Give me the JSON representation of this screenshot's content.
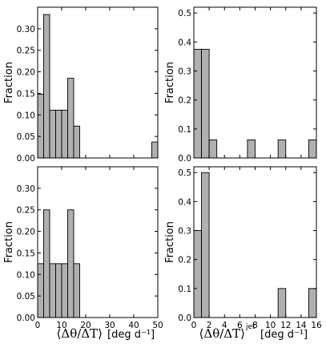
{
  "figure": {
    "bar_color": "#b0b0b0",
    "edge_color": "#000000",
    "ylabel": "Fraction",
    "xlabel_left": "⟨Δθ/ΔT⟩",
    "xlabel_right": "⟨Δθ/ΔT⟩",
    "xlabel_right_sup": "jet",
    "xunit": "[deg d⁻¹]"
  },
  "chart_data": [
    {
      "type": "bar",
      "panel": "top-left",
      "bin_width": 2.5,
      "bins": [
        {
          "x0": 0,
          "x1": 2.5,
          "value": 0.148
        },
        {
          "x0": 2.5,
          "x1": 5,
          "value": 0.333
        },
        {
          "x0": 5,
          "x1": 7.5,
          "value": 0.111
        },
        {
          "x0": 7.5,
          "x1": 10,
          "value": 0.111
        },
        {
          "x0": 10,
          "x1": 12.5,
          "value": 0.111
        },
        {
          "x0": 12.5,
          "x1": 15,
          "value": 0.185
        },
        {
          "x0": 15,
          "x1": 17.5,
          "value": 0.074
        },
        {
          "x0": 47.5,
          "x1": 50,
          "value": 0.037
        }
      ],
      "xlim": [
        0,
        50
      ],
      "ylim": [
        0,
        0.35
      ],
      "xticks": [
        0,
        10,
        20,
        30,
        40,
        50
      ],
      "yticks": [
        "0.00",
        "0.05",
        "0.10",
        "0.15",
        "0.20",
        "0.25",
        "0.30"
      ],
      "ylabel": "Fraction",
      "show_xticklabels": false
    },
    {
      "type": "bar",
      "panel": "top-right",
      "bins": [
        {
          "x0": 0,
          "x1": 1,
          "value": 0.375
        },
        {
          "x0": 1,
          "x1": 2,
          "value": 0.375
        },
        {
          "x0": 2,
          "x1": 3,
          "value": 0.0625
        },
        {
          "x0": 7,
          "x1": 8,
          "value": 0.0625
        },
        {
          "x0": 11,
          "x1": 12,
          "value": 0.0625
        },
        {
          "x0": 15,
          "x1": 16,
          "value": 0.0625
        }
      ],
      "xlim": [
        0,
        16
      ],
      "ylim": [
        0,
        0.52
      ],
      "xticks": [
        0,
        2,
        4,
        6,
        8,
        10,
        12,
        14,
        16
      ],
      "yticks": [
        "0.0",
        "0.1",
        "0.2",
        "0.3",
        "0.4",
        "0.5"
      ],
      "ylabel": "Fraction",
      "show_xticklabels": false
    },
    {
      "type": "bar",
      "panel": "bottom-left",
      "bins": [
        {
          "x0": 0,
          "x1": 2.5,
          "value": 0.125
        },
        {
          "x0": 2.5,
          "x1": 5,
          "value": 0.25
        },
        {
          "x0": 5,
          "x1": 7.5,
          "value": 0.125
        },
        {
          "x0": 7.5,
          "x1": 10,
          "value": 0.125
        },
        {
          "x0": 10,
          "x1": 12.5,
          "value": 0.125
        },
        {
          "x0": 12.5,
          "x1": 15,
          "value": 0.25
        },
        {
          "x0": 15,
          "x1": 17.5,
          "value": 0.125
        }
      ],
      "xlim": [
        0,
        50
      ],
      "ylim": [
        0,
        0.35
      ],
      "xticks": [
        0,
        10,
        20,
        30,
        40,
        50
      ],
      "xticklabels": [
        "0",
        "10",
        "20",
        "30",
        "40",
        "50"
      ],
      "yticks": [
        "0.00",
        "0.05",
        "0.10",
        "0.15",
        "0.20",
        "0.25",
        "0.30"
      ],
      "ylabel": "Fraction",
      "show_xticklabels": true
    },
    {
      "type": "bar",
      "panel": "bottom-right",
      "bins": [
        {
          "x0": 0,
          "x1": 1,
          "value": 0.3
        },
        {
          "x0": 1,
          "x1": 2,
          "value": 0.5
        },
        {
          "x0": 11,
          "x1": 12,
          "value": 0.1
        },
        {
          "x0": 15,
          "x1": 16,
          "value": 0.1
        }
      ],
      "xlim": [
        0,
        16
      ],
      "ylim": [
        0,
        0.52
      ],
      "xticks": [
        0,
        2,
        4,
        6,
        8,
        10,
        12,
        14,
        16
      ],
      "xticklabels": [
        "0",
        "2",
        "4",
        "6",
        "8",
        "10",
        "12",
        "14",
        "16"
      ],
      "yticks": [
        "0.0",
        "0.1",
        "0.2",
        "0.3",
        "0.4",
        "0.5"
      ],
      "ylabel": "Fraction",
      "show_xticklabels": true
    }
  ]
}
